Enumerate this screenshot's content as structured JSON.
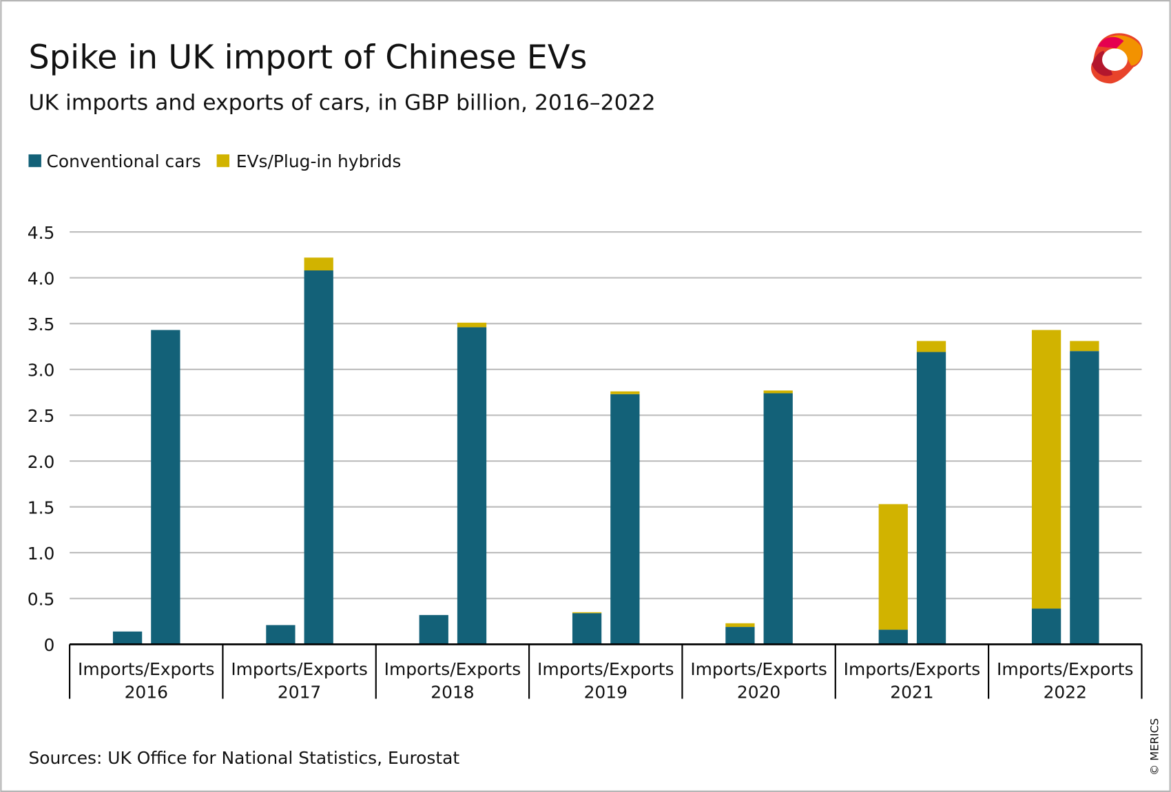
{
  "title": "Spike in UK import of Chinese EVs",
  "subtitle": "UK imports and exports of cars, in GBP billion, 2016–2022",
  "source": "Sources: UK Office for National Statistics, Eurostat",
  "copyright": "© MERICS",
  "logo": "MERICS",
  "colors": {
    "conventional": "#136178",
    "ev": "#d1b300",
    "grid": "#bdbdbd",
    "axis": "#000000"
  },
  "chart_data": {
    "type": "bar",
    "stacked": true,
    "title": "Spike in UK import of Chinese EVs",
    "subtitle": "UK imports and exports of cars, in GBP billion, 2016–2022",
    "legend": {
      "placement": "top-left",
      "items": [
        "Conventional cars",
        "EVs/Plug-in hybrids"
      ]
    },
    "ylim": [
      0,
      4.5
    ],
    "yticks": [
      "0",
      "0.5",
      "1.0",
      "1.5",
      "2.0",
      "2.5",
      "3.0",
      "3.5",
      "4.0",
      "4.5"
    ],
    "grid": true,
    "categories": [
      {
        "label": "Imports/Exports",
        "year": "2016"
      },
      {
        "label": "Imports/Exports",
        "year": "2017"
      },
      {
        "label": "Imports/Exports",
        "year": "2018"
      },
      {
        "label": "Imports/Exports",
        "year": "2019"
      },
      {
        "label": "Imports/Exports",
        "year": "2020"
      },
      {
        "label": "Imports/Exports",
        "year": "2021"
      },
      {
        "label": "Imports/Exports",
        "year": "2022"
      }
    ],
    "series": [
      {
        "name": "Conventional cars",
        "imports": [
          0.14,
          0.21,
          0.32,
          0.34,
          0.19,
          0.16,
          0.39
        ],
        "exports": [
          3.43,
          4.08,
          3.46,
          2.73,
          2.74,
          3.19,
          3.2
        ]
      },
      {
        "name": "EVs/Plug-in hybrids",
        "imports": [
          0.0,
          0.0,
          0.0,
          0.01,
          0.04,
          1.37,
          3.04
        ],
        "exports": [
          0.0,
          0.14,
          0.05,
          0.03,
          0.03,
          0.12,
          0.11
        ]
      }
    ]
  }
}
